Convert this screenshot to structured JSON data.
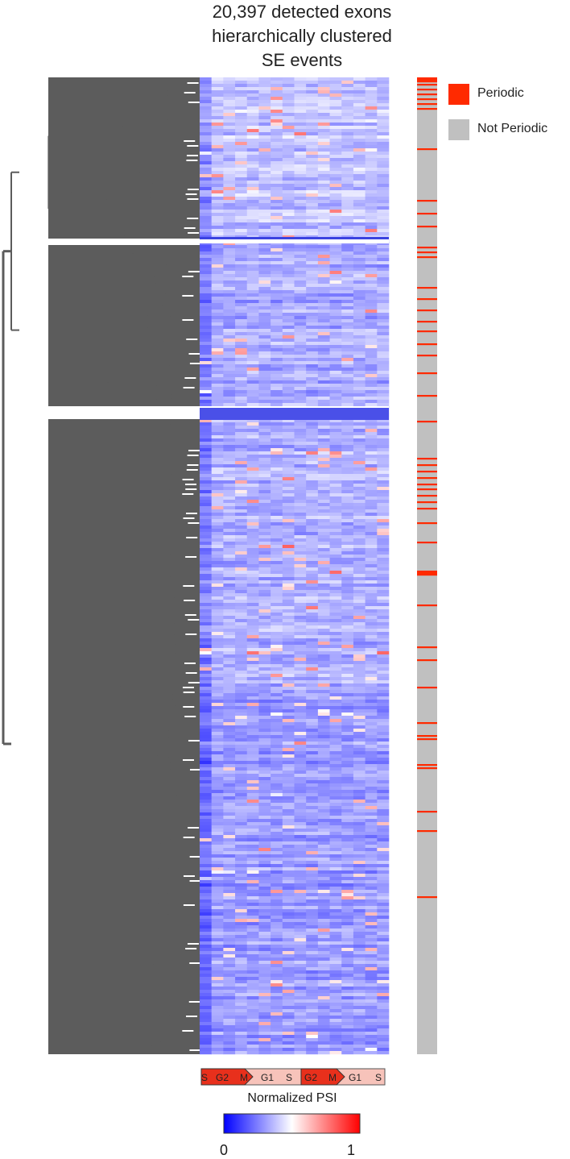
{
  "title_lines": [
    "20,397 detected exons",
    "hierarchically clustered",
    "SE events"
  ],
  "legend": [
    {
      "label": "Periodic",
      "color": "#ff2a00"
    },
    {
      "label": "Not Periodic",
      "color": "#c0c0c0"
    }
  ],
  "phase_bar": {
    "labels": [
      "S",
      "G2",
      "M",
      "G1",
      "S",
      "G2",
      "M",
      "G1",
      "S"
    ],
    "color_light": "#f7c3ba",
    "color_dark": "#e8301c"
  },
  "colorbar": {
    "title": "Normalized PSI",
    "min_label": "0",
    "max_label": "1",
    "low_color": "#0000ff",
    "mid_color": "#ffffff",
    "high_color": "#ff0000"
  },
  "chart_data": {
    "type": "heatmap",
    "title": "20,397 detected exons hierarchically clustered SE events",
    "n_rows": 20397,
    "n_columns": 16,
    "column_phase_labels": [
      "S",
      "G2",
      "M",
      "G1",
      "S",
      "G2",
      "M",
      "G1",
      "S"
    ],
    "value_label": "Normalized PSI",
    "value_range": [
      0,
      1
    ],
    "colormap": [
      "#0000ff",
      "#ffffff",
      "#ff0000"
    ],
    "row_clusters": 3,
    "row_annotation": {
      "categories": [
        "Periodic",
        "Not Periodic"
      ]
    },
    "dendrogram": "rows"
  }
}
